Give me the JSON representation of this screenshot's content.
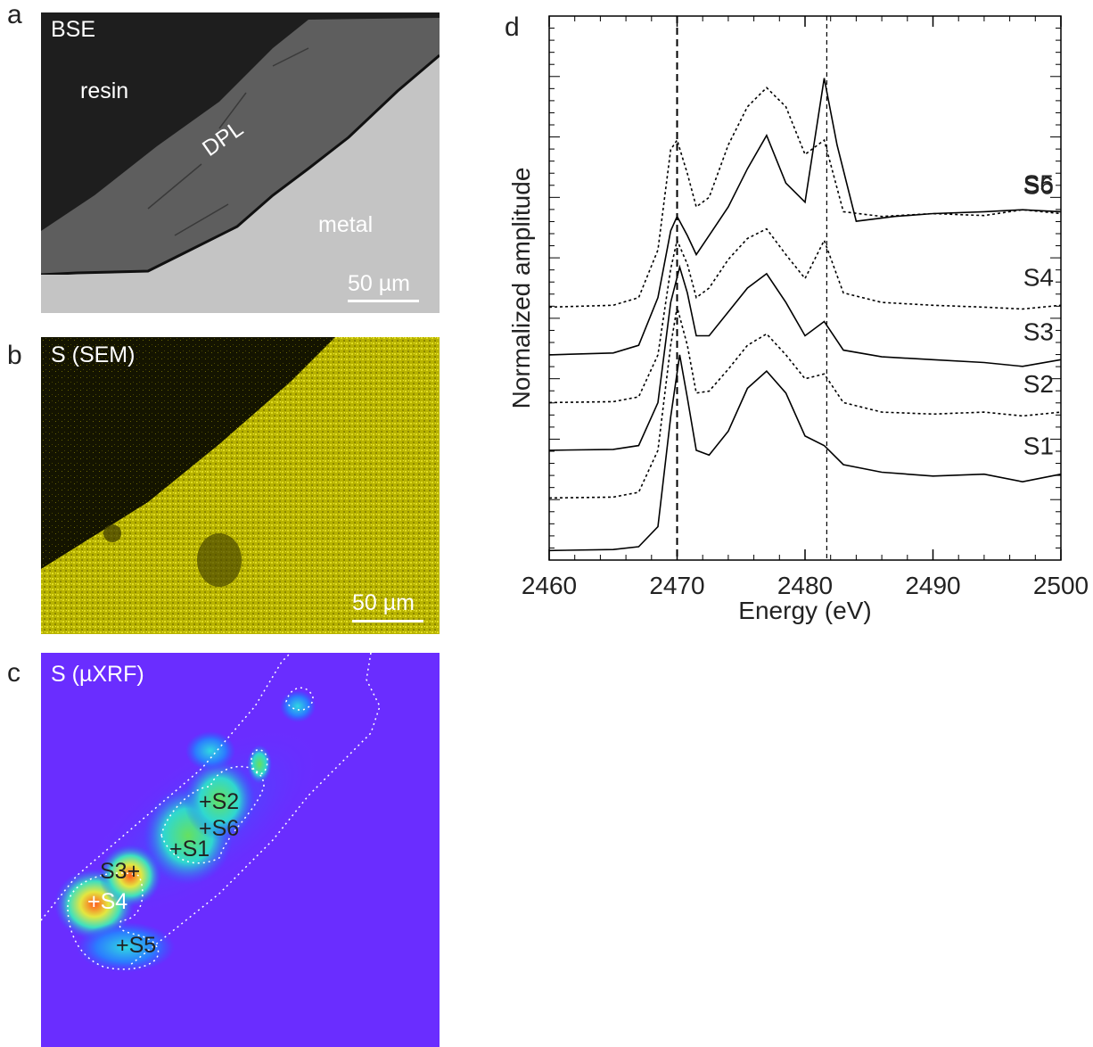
{
  "panels": {
    "a": {
      "letter": "a",
      "title": "BSE",
      "labels": {
        "resin": "resin",
        "dpl": "DPL",
        "metal": "metal"
      },
      "scale_bar": "50 µm",
      "colors": {
        "resin": "#1e1e1e",
        "metal": "#c0c0c0",
        "dpl": "#5b5b5b"
      }
    },
    "b": {
      "letter": "b",
      "title": "S (SEM)",
      "scale_bar": "50 µm",
      "colors": {
        "background": "#1a1a00",
        "signal": "#c8c400"
      }
    },
    "c": {
      "letter": "c",
      "title": "S (µXRF)",
      "points": [
        "S1",
        "S2",
        "S3",
        "S4",
        "S5",
        "S6"
      ],
      "colors": {
        "background": "#6a2dff",
        "low": "#2b5cff",
        "mid": "#33e0c8",
        "high": "#ff4b1f"
      }
    }
  },
  "chart_data": {
    "type": "line",
    "panel_letter": "d",
    "xlabel": "Energy (eV)",
    "ylabel": "Normalized amplitude",
    "xlim": [
      2460,
      2500
    ],
    "xticks": [
      2460,
      2470,
      2480,
      2490,
      2500
    ],
    "dashed_lines_x": [
      2470.0,
      2481.7
    ],
    "series": [
      {
        "name": "S1",
        "style": "solid",
        "offset": 0,
        "points": [
          [
            2460,
            0.0
          ],
          [
            2465,
            0.01
          ],
          [
            2467,
            0.04
          ],
          [
            2468.5,
            0.25
          ],
          [
            2469.5,
            1.4
          ],
          [
            2470.2,
            2.05
          ],
          [
            2470.8,
            1.6
          ],
          [
            2471.5,
            1.05
          ],
          [
            2472.5,
            1.0
          ],
          [
            2474,
            1.25
          ],
          [
            2475.5,
            1.7
          ],
          [
            2477,
            1.88
          ],
          [
            2478.5,
            1.65
          ],
          [
            2480,
            1.2
          ],
          [
            2481.5,
            1.1
          ],
          [
            2483,
            0.9
          ],
          [
            2486,
            0.82
          ],
          [
            2490,
            0.78
          ],
          [
            2494,
            0.8
          ],
          [
            2497,
            0.72
          ],
          [
            2500,
            0.8
          ]
        ]
      },
      {
        "name": "S2",
        "style": "dashed",
        "offset": 0.55,
        "points": [
          [
            2460,
            0.0
          ],
          [
            2465,
            0.01
          ],
          [
            2467,
            0.06
          ],
          [
            2468.5,
            0.5
          ],
          [
            2469.5,
            1.6
          ],
          [
            2470.0,
            2.0
          ],
          [
            2470.8,
            1.6
          ],
          [
            2471.5,
            1.1
          ],
          [
            2472.5,
            1.12
          ],
          [
            2474,
            1.35
          ],
          [
            2475.5,
            1.6
          ],
          [
            2477,
            1.72
          ],
          [
            2478.5,
            1.5
          ],
          [
            2480,
            1.25
          ],
          [
            2481.5,
            1.3
          ],
          [
            2483,
            1.0
          ],
          [
            2486,
            0.9
          ],
          [
            2490,
            0.88
          ],
          [
            2494,
            0.9
          ],
          [
            2497,
            0.86
          ],
          [
            2500,
            0.9
          ]
        ]
      },
      {
        "name": "S3",
        "style": "solid",
        "offset": 1.05,
        "points": [
          [
            2460,
            0.0
          ],
          [
            2465,
            0.01
          ],
          [
            2467,
            0.05
          ],
          [
            2468.5,
            0.5
          ],
          [
            2469.5,
            1.55
          ],
          [
            2470.2,
            1.92
          ],
          [
            2470.8,
            1.65
          ],
          [
            2471.5,
            1.2
          ],
          [
            2472.5,
            1.2
          ],
          [
            2474,
            1.45
          ],
          [
            2475.5,
            1.7
          ],
          [
            2477,
            1.85
          ],
          [
            2478.5,
            1.55
          ],
          [
            2480,
            1.2
          ],
          [
            2481.5,
            1.35
          ],
          [
            2483,
            1.05
          ],
          [
            2486,
            0.98
          ],
          [
            2490,
            0.95
          ],
          [
            2494,
            0.92
          ],
          [
            2497,
            0.88
          ],
          [
            2500,
            0.95
          ]
        ]
      },
      {
        "name": "S4",
        "style": "dashed",
        "offset": 1.55,
        "points": [
          [
            2460,
            0.0
          ],
          [
            2465,
            0.01
          ],
          [
            2467,
            0.06
          ],
          [
            2468.5,
            0.5
          ],
          [
            2469.5,
            1.4
          ],
          [
            2470.0,
            1.7
          ],
          [
            2470.8,
            1.45
          ],
          [
            2471.5,
            1.1
          ],
          [
            2472.5,
            1.2
          ],
          [
            2474,
            1.5
          ],
          [
            2475.5,
            1.72
          ],
          [
            2477,
            1.82
          ],
          [
            2478.5,
            1.55
          ],
          [
            2480,
            1.3
          ],
          [
            2481.5,
            1.7
          ],
          [
            2483,
            1.15
          ],
          [
            2486,
            1.05
          ],
          [
            2490,
            1.02
          ],
          [
            2494,
            1.0
          ],
          [
            2497,
            0.98
          ],
          [
            2500,
            1.02
          ]
        ]
      },
      {
        "name": "S5",
        "style": "solid",
        "offset": 2.05,
        "points": [
          [
            2460,
            0.0
          ],
          [
            2465,
            0.02
          ],
          [
            2467,
            0.1
          ],
          [
            2468.5,
            0.6
          ],
          [
            2469.5,
            1.3
          ],
          [
            2470.0,
            1.45
          ],
          [
            2470.8,
            1.25
          ],
          [
            2471.5,
            1.05
          ],
          [
            2472.5,
            1.25
          ],
          [
            2474,
            1.55
          ],
          [
            2475.5,
            1.95
          ],
          [
            2477,
            2.3
          ],
          [
            2478.5,
            1.8
          ],
          [
            2480,
            1.6
          ],
          [
            2481.5,
            2.9
          ],
          [
            2482.5,
            2.2
          ],
          [
            2484,
            1.4
          ],
          [
            2487,
            1.45
          ],
          [
            2490,
            1.48
          ],
          [
            2494,
            1.5
          ],
          [
            2497,
            1.52
          ],
          [
            2500,
            1.5
          ]
        ]
      },
      {
        "name": "S6",
        "style": "dashed",
        "offset": 2.55,
        "points": [
          [
            2460,
            0.0
          ],
          [
            2465,
            0.02
          ],
          [
            2467,
            0.1
          ],
          [
            2468.5,
            0.6
          ],
          [
            2469.5,
            1.65
          ],
          [
            2470.0,
            1.75
          ],
          [
            2470.8,
            1.4
          ],
          [
            2471.5,
            1.05
          ],
          [
            2472.5,
            1.15
          ],
          [
            2474,
            1.7
          ],
          [
            2475.5,
            2.1
          ],
          [
            2477,
            2.3
          ],
          [
            2478.5,
            2.1
          ],
          [
            2480,
            1.6
          ],
          [
            2481.5,
            1.75
          ],
          [
            2483,
            1.0
          ],
          [
            2486,
            0.95
          ],
          [
            2490,
            0.98
          ],
          [
            2494,
            0.96
          ],
          [
            2497,
            1.02
          ],
          [
            2500,
            0.98
          ]
        ]
      }
    ]
  }
}
